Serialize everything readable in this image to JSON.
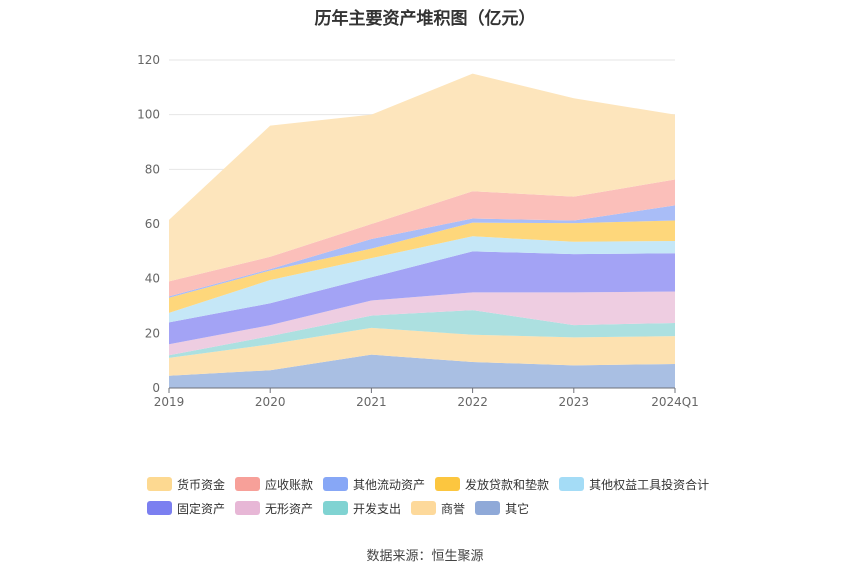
{
  "title": "历年主要资产堆积图（亿元）",
  "source": "数据来源：恒生聚源",
  "chart_data": {
    "type": "area",
    "stacked": true,
    "categories": [
      "2019",
      "2020",
      "2021",
      "2022",
      "2023",
      "2024Q1"
    ],
    "ylim": [
      0,
      120
    ],
    "yticks": [
      "0",
      "20",
      "40",
      "60",
      "80",
      "100",
      "120"
    ],
    "legend_position": "bottom",
    "series": [
      {
        "name": "其它",
        "color": "#a9bfe3",
        "values": [
          4.5,
          6.5,
          12.2,
          9.5,
          8.3,
          8.8
        ]
      },
      {
        "name": "商誉",
        "color": "#fde1b0",
        "values": [
          6.5,
          9.5,
          9.8,
          10.0,
          10.2,
          10.2
        ]
      },
      {
        "name": "开发支出",
        "color": "#ace0e0",
        "values": [
          1.0,
          3.0,
          4.5,
          9.0,
          4.5,
          4.8
        ]
      },
      {
        "name": "无形资产",
        "color": "#eecde1",
        "values": [
          4.0,
          4.0,
          5.5,
          6.5,
          12.0,
          11.5
        ]
      },
      {
        "name": "固定资产",
        "color": "#a3a3f5",
        "values": [
          8.0,
          8.0,
          8.5,
          15.0,
          14.0,
          14.0
        ]
      },
      {
        "name": "其他权益工具投资合计",
        "color": "#c5e7f7",
        "values": [
          3.5,
          8.5,
          7.0,
          5.5,
          4.5,
          4.5
        ]
      },
      {
        "name": "发放贷款和垫款",
        "color": "#fed77b",
        "values": [
          5.5,
          3.5,
          3.5,
          5.0,
          6.8,
          7.5
        ]
      },
      {
        "name": "其他流动资产",
        "color": "#a9bdf7",
        "values": [
          0.5,
          0.5,
          3.5,
          1.5,
          1.0,
          5.5
        ]
      },
      {
        "name": "应收账款",
        "color": "#fbbfba",
        "values": [
          5.5,
          4.5,
          5.5,
          10.0,
          8.7,
          9.5
        ]
      },
      {
        "name": "货币资金",
        "color": "#fde5bc",
        "values": [
          22.5,
          48.0,
          40.0,
          43.0,
          36.0,
          23.7
        ]
      }
    ],
    "legend": [
      {
        "name": "货币资金",
        "color": "#fdd991"
      },
      {
        "name": "应收账款",
        "color": "#f7a099"
      },
      {
        "name": "其他流动资产",
        "color": "#87a7f6"
      },
      {
        "name": "发放贷款和垫款",
        "color": "#fcc63f"
      },
      {
        "name": "其他权益工具投资合计",
        "color": "#a4dcf6"
      },
      {
        "name": "固定资产",
        "color": "#7b7ff0"
      },
      {
        "name": "无形资产",
        "color": "#e7b7d6"
      },
      {
        "name": "开发支出",
        "color": "#80d3d2"
      },
      {
        "name": "商誉",
        "color": "#fdd99b"
      },
      {
        "name": "其它",
        "color": "#8fa9d8"
      }
    ]
  }
}
